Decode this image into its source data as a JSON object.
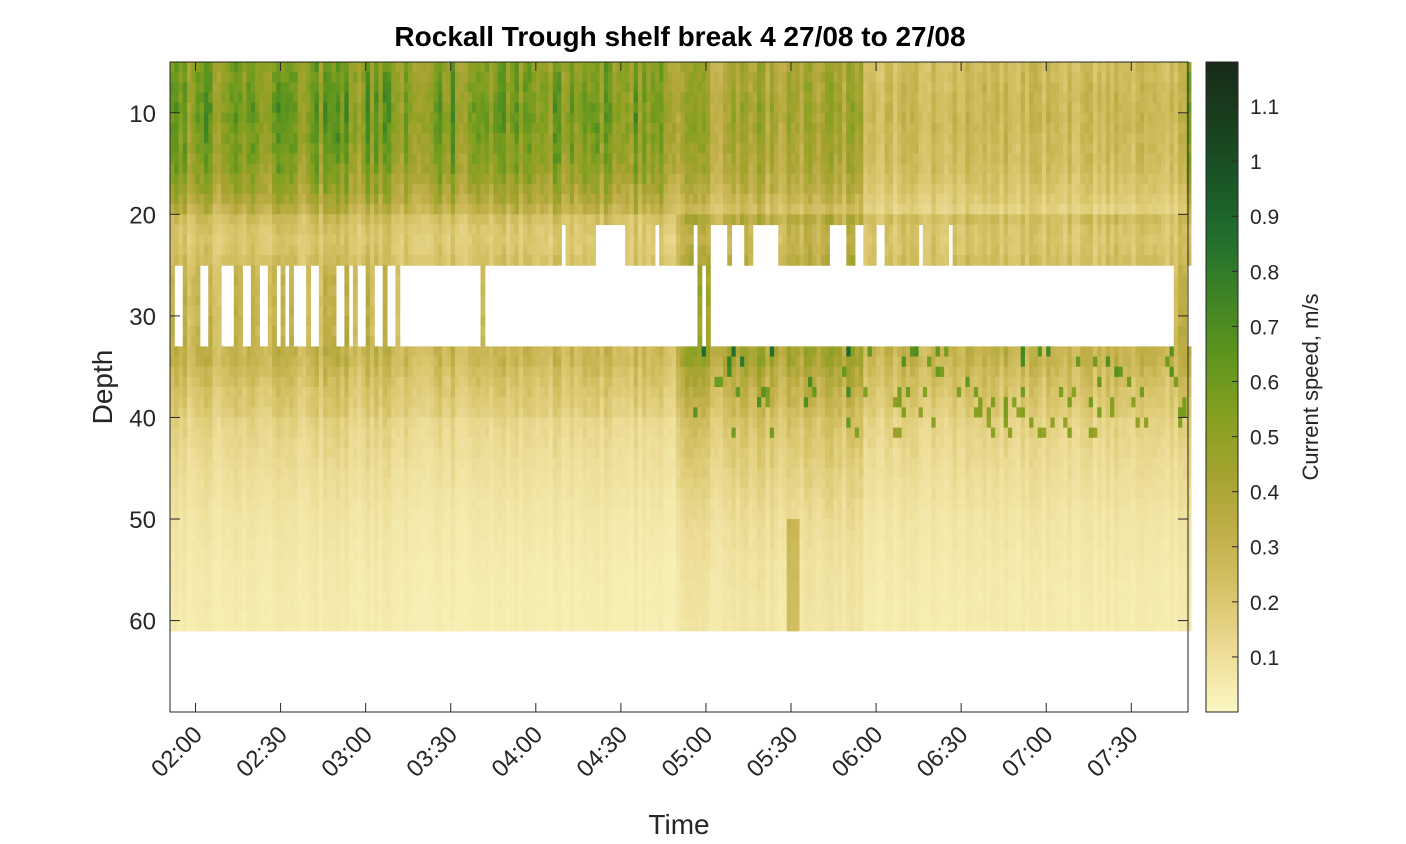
{
  "chart_data": {
    "type": "heatmap",
    "title": "Rockall Trough shelf break 4 27/08 to 27/08",
    "xlabel": "Time",
    "ylabel": "Depth",
    "colorbar_label": "Current speed, m/s",
    "x_tick_labels": [
      "02:00",
      "02:30",
      "03:00",
      "03:30",
      "04:00",
      "04:30",
      "05:00",
      "05:30",
      "06:00",
      "06:30",
      "07:00",
      "07:30"
    ],
    "x_tick_minutes": [
      120,
      150,
      180,
      210,
      240,
      270,
      300,
      330,
      360,
      390,
      420,
      450
    ],
    "xlim_minutes": [
      111,
      470
    ],
    "y_ticks": [
      10,
      20,
      30,
      40,
      50,
      60
    ],
    "ylim": [
      5,
      69
    ],
    "y_reversed": true,
    "clim": [
      0,
      1.18
    ],
    "colorbar_ticks": [
      0.1,
      0.2,
      0.3,
      0.4,
      0.5,
      0.6,
      0.7,
      0.8,
      0.9,
      1.0,
      1.1
    ],
    "colorbar_tick_labels": [
      "0.1",
      "0.2",
      "0.3",
      "0.4",
      "0.5",
      "0.6",
      "0.7",
      "0.8",
      "0.9",
      "1",
      "1.1"
    ],
    "colormap": [
      "#fbf7c2",
      "#eddd97",
      "#d8c46a",
      "#c1b04a",
      "#a5a32f",
      "#86a020",
      "#5f951e",
      "#3f8424",
      "#226f2e",
      "#1a5627",
      "#193f1e",
      "#182a17"
    ],
    "data_depth_max": 61,
    "depth_profile": [
      [
        5,
        0.46
      ],
      [
        10,
        0.5
      ],
      [
        15,
        0.45
      ],
      [
        18,
        0.36
      ],
      [
        20,
        0.26
      ],
      [
        22,
        0.2
      ],
      [
        24,
        0.22
      ],
      [
        26,
        0.28
      ],
      [
        30,
        0.28
      ],
      [
        34,
        0.3
      ],
      [
        37,
        0.22
      ],
      [
        40,
        0.17
      ],
      [
        45,
        0.12
      ],
      [
        50,
        0.08
      ],
      [
        55,
        0.06
      ],
      [
        61,
        0.05
      ]
    ],
    "time_modulation": [
      {
        "t0": 111,
        "t1": 200,
        "top": 1.15,
        "mid": 1.0,
        "low": 0.9
      },
      {
        "t0": 200,
        "t1": 290,
        "top": 1.15,
        "mid": 0.95,
        "low": 0.8
      },
      {
        "t0": 290,
        "t1": 355,
        "top": 0.85,
        "mid": 1.4,
        "low": 1.3
      },
      {
        "t0": 355,
        "t1": 470,
        "top": 0.55,
        "mid": 1.0,
        "low": 0.9
      }
    ],
    "gap_band_depths": [
      25,
      33
    ],
    "gap_band_data_columns": [
      [
        111,
        112
      ],
      [
        116,
        121
      ],
      [
        125,
        129
      ],
      [
        133,
        137
      ],
      [
        140,
        143
      ],
      [
        145,
        148
      ],
      [
        150,
        152
      ],
      [
        153,
        155
      ],
      [
        159,
        161
      ],
      [
        164,
        170
      ],
      [
        172,
        174
      ],
      [
        175,
        177
      ],
      [
        180,
        181
      ],
      [
        182,
        183
      ],
      [
        186,
        188
      ],
      [
        191,
        192
      ],
      [
        196,
        196.5
      ],
      [
        221,
        222.5
      ],
      [
        297,
        298.5
      ],
      [
        300.5,
        301
      ],
      [
        302.5,
        303.5
      ],
      [
        437.5,
        438.5
      ],
      [
        465,
        470
      ]
    ],
    "upper_gaps": [
      [
        249,
        251
      ],
      [
        261,
        265
      ],
      [
        266,
        271
      ],
      [
        282,
        284
      ],
      [
        296,
        297
      ],
      [
        302,
        307
      ],
      [
        309,
        314
      ],
      [
        316,
        326
      ],
      [
        344,
        350
      ],
      [
        353,
        355
      ],
      [
        360,
        363
      ],
      [
        375,
        377
      ],
      [
        382,
        383
      ],
      [
        385,
        387
      ]
    ],
    "upper_gap_depth_range": [
      21.5,
      25
    ]
  }
}
